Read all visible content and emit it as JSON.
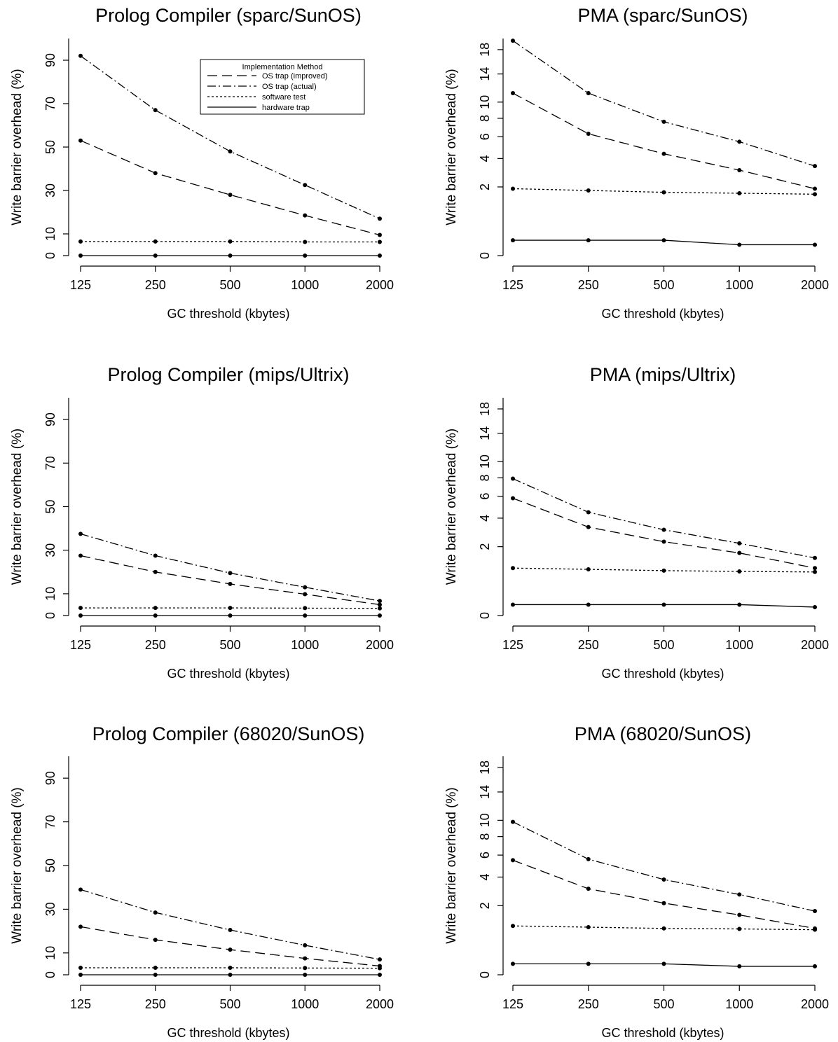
{
  "figure": {
    "legend": {
      "title": "Implementation Method",
      "entries": [
        {
          "label": "OS trap (improved)",
          "dash": "long-dash"
        },
        {
          "label": "OS trap (actual)",
          "dash": "dot-dash"
        },
        {
          "label": "software test",
          "dash": "dotted"
        },
        {
          "label": "hardware trap",
          "dash": "solid"
        }
      ]
    }
  },
  "chart_data": [
    {
      "type": "line",
      "title": "Prolog Compiler (sparc/SunOS)",
      "xlabel": "GC threshold (kbytes)",
      "ylabel": "Write barrier overhead (%)",
      "categories": [
        "125",
        "250",
        "500",
        "1000",
        "2000"
      ],
      "yscale": "linear",
      "ylim": [
        0,
        100
      ],
      "yticks": [
        0,
        10,
        30,
        50,
        70,
        90
      ],
      "grid": false,
      "legend": "top-right",
      "series": [
        {
          "name": "OS trap (improved)",
          "values": [
            53,
            38,
            28,
            18.5,
            9.5
          ]
        },
        {
          "name": "OS trap (actual)",
          "values": [
            92,
            67,
            48,
            32.5,
            17
          ]
        },
        {
          "name": "software test",
          "values": [
            6.5,
            6.5,
            6.5,
            6.3,
            6.3
          ]
        },
        {
          "name": "hardware trap",
          "values": [
            0,
            0,
            0,
            0,
            0
          ]
        }
      ]
    },
    {
      "type": "line",
      "title": "PMA (sparc/SunOS)",
      "xlabel": "GC threshold (kbytes)",
      "ylabel": "Write barrier overhead (%)",
      "categories": [
        "125",
        "250",
        "500",
        "1000",
        "2000"
      ],
      "yscale": "sqrt",
      "ylim": [
        0,
        20
      ],
      "yticks": [
        0,
        2,
        4,
        6,
        8,
        10,
        14,
        18
      ],
      "grid": false,
      "series": [
        {
          "name": "OS trap (improved)",
          "values": [
            11.2,
            6.3,
            4.4,
            3.1,
            1.9
          ]
        },
        {
          "name": "OS trap (actual)",
          "values": [
            19.6,
            11.2,
            7.6,
            5.5,
            3.4
          ]
        },
        {
          "name": "software test",
          "values": [
            1.9,
            1.8,
            1.7,
            1.65,
            1.6
          ]
        },
        {
          "name": "hardware trap",
          "values": [
            0.1,
            0.1,
            0.1,
            0.05,
            0.05
          ]
        }
      ]
    },
    {
      "type": "line",
      "title": "Prolog Compiler (mips/Ultrix)",
      "xlabel": "GC threshold (kbytes)",
      "ylabel": "Write barrier overhead (%)",
      "categories": [
        "125",
        "250",
        "500",
        "1000",
        "2000"
      ],
      "yscale": "linear",
      "ylim": [
        0,
        100
      ],
      "yticks": [
        0,
        10,
        30,
        50,
        70,
        90
      ],
      "grid": false,
      "series": [
        {
          "name": "OS trap (improved)",
          "values": [
            27.5,
            20,
            14.5,
            9.8,
            5
          ]
        },
        {
          "name": "OS trap (actual)",
          "values": [
            37.5,
            27.5,
            19.5,
            13,
            6.7
          ]
        },
        {
          "name": "software test",
          "values": [
            3.5,
            3.5,
            3.5,
            3.4,
            3.3
          ]
        },
        {
          "name": "hardware trap",
          "values": [
            0,
            0,
            0,
            0,
            0
          ]
        }
      ]
    },
    {
      "type": "line",
      "title": "PMA (mips/Ultrix)",
      "xlabel": "GC threshold (kbytes)",
      "ylabel": "Write barrier overhead (%)",
      "categories": [
        "125",
        "250",
        "500",
        "1000",
        "2000"
      ],
      "yscale": "sqrt",
      "ylim": [
        0,
        20
      ],
      "yticks": [
        0,
        2,
        4,
        6,
        8,
        10,
        14,
        18
      ],
      "grid": false,
      "series": [
        {
          "name": "OS trap (improved)",
          "values": [
            5.8,
            3.3,
            2.3,
            1.65,
            0.95
          ]
        },
        {
          "name": "OS trap (actual)",
          "values": [
            7.9,
            4.5,
            3.1,
            2.2,
            1.4
          ]
        },
        {
          "name": "software test",
          "values": [
            0.95,
            0.9,
            0.85,
            0.82,
            0.8
          ]
        },
        {
          "name": "hardware trap",
          "values": [
            0.05,
            0.05,
            0.05,
            0.05,
            0.03
          ]
        }
      ]
    },
    {
      "type": "line",
      "title": "Prolog Compiler (68020/SunOS)",
      "xlabel": "GC threshold (kbytes)",
      "ylabel": "Write barrier overhead (%)",
      "categories": [
        "125",
        "250",
        "500",
        "1000",
        "2000"
      ],
      "yscale": "linear",
      "ylim": [
        0,
        100
      ],
      "yticks": [
        0,
        10,
        30,
        50,
        70,
        90
      ],
      "grid": false,
      "series": [
        {
          "name": "OS trap (improved)",
          "values": [
            22,
            16,
            11.5,
            7.5,
            4
          ]
        },
        {
          "name": "OS trap (actual)",
          "values": [
            39,
            28.5,
            20.5,
            13.5,
            7
          ]
        },
        {
          "name": "software test",
          "values": [
            3.2,
            3.2,
            3.2,
            3.1,
            3
          ]
        },
        {
          "name": "hardware trap",
          "values": [
            0,
            0,
            0,
            0,
            0
          ]
        }
      ]
    },
    {
      "type": "line",
      "title": "PMA (68020/SunOS)",
      "xlabel": "GC threshold (kbytes)",
      "ylabel": "Write barrier overhead (%)",
      "categories": [
        "125",
        "250",
        "500",
        "1000",
        "2000"
      ],
      "yscale": "sqrt",
      "ylim": [
        0,
        20
      ],
      "yticks": [
        0,
        2,
        4,
        6,
        8,
        10,
        14,
        18
      ],
      "grid": false,
      "series": [
        {
          "name": "OS trap (improved)",
          "values": [
            5.5,
            3.1,
            2.15,
            1.5,
            0.9
          ]
        },
        {
          "name": "OS trap (actual)",
          "values": [
            9.8,
            5.6,
            3.8,
            2.7,
            1.7
          ]
        },
        {
          "name": "software test",
          "values": [
            1.0,
            0.95,
            0.9,
            0.88,
            0.85
          ]
        },
        {
          "name": "hardware trap",
          "values": [
            0.05,
            0.05,
            0.05,
            0.03,
            0.03
          ]
        }
      ]
    }
  ]
}
